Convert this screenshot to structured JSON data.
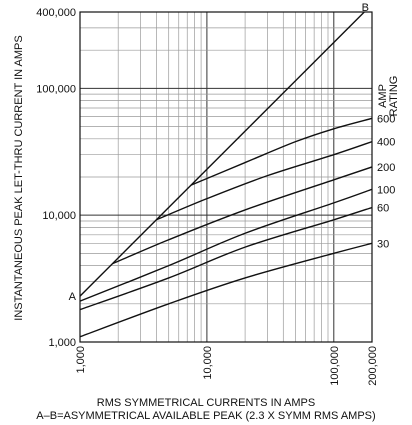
{
  "chart_data": {
    "type": "line",
    "ylabel": "INSTANTANEOUS PEAK LET-THRU CURRENT IN AMPS",
    "xlabel": "RMS SYMMETRICAL CURRENTS IN AMPS",
    "subcaption": "A–B=ASYMMETRICAL AVAILABLE PEAK (2.3 X SYMM RMS AMPS)",
    "legend_title": "AMP RATING",
    "x_scale": "log",
    "y_scale": "log",
    "xlim": [
      1000,
      200000
    ],
    "ylim": [
      1000,
      400000
    ],
    "x_ticks": [
      {
        "value": 1000,
        "label": "1,000"
      },
      {
        "value": 10000,
        "label": "10,000"
      },
      {
        "value": 100000,
        "label": "100,000"
      },
      {
        "value": 200000,
        "label": "200,000"
      }
    ],
    "y_ticks": [
      {
        "value": 1000,
        "label": "1,000"
      },
      {
        "value": 10000,
        "label": "10,000"
      },
      {
        "value": 100000,
        "label": "100,000"
      },
      {
        "value": 400000,
        "label": "400,000"
      }
    ],
    "grid": true,
    "reference_line": {
      "start_label": "A",
      "end_label": "B",
      "points": [
        [
          1000,
          2300
        ],
        [
          200000,
          460000
        ]
      ]
    },
    "series": [
      {
        "name": "600",
        "points": [
          [
            7500,
            17250
          ],
          [
            20000,
            26000
          ],
          [
            50000,
            38000
          ],
          [
            100000,
            48000
          ],
          [
            200000,
            58000
          ]
        ]
      },
      {
        "name": "400",
        "points": [
          [
            4000,
            9200
          ],
          [
            10000,
            13500
          ],
          [
            30000,
            20500
          ],
          [
            100000,
            30000
          ],
          [
            200000,
            38000
          ]
        ]
      },
      {
        "name": "200",
        "points": [
          [
            1800,
            4140
          ],
          [
            5000,
            6400
          ],
          [
            20000,
            11000
          ],
          [
            100000,
            19000
          ],
          [
            200000,
            24000
          ]
        ]
      },
      {
        "name": "100",
        "points": [
          [
            1000,
            2100
          ],
          [
            5000,
            4000
          ],
          [
            20000,
            7200
          ],
          [
            100000,
            12500
          ],
          [
            200000,
            16000
          ]
        ]
      },
      {
        "name": "60",
        "points": [
          [
            1000,
            1800
          ],
          [
            5000,
            3200
          ],
          [
            20000,
            5600
          ],
          [
            100000,
            9200
          ],
          [
            200000,
            11500
          ]
        ]
      },
      {
        "name": "30",
        "points": [
          [
            1000,
            1100
          ],
          [
            5000,
            2000
          ],
          [
            20000,
            3200
          ],
          [
            100000,
            5000
          ],
          [
            200000,
            6000
          ]
        ]
      }
    ]
  }
}
